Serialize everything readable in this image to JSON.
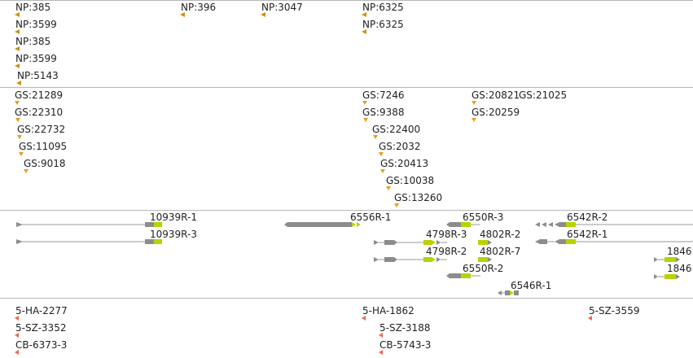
{
  "colors": {
    "np_marker": "#d09010",
    "gs_marker": "#e6a11c",
    "gene_line": "#999999",
    "gene_body": "#8c8c8c",
    "exon": "#b8d200",
    "marker_red": "#ee6a4a",
    "divider": "#b8b8b8"
  },
  "np_track": {
    "features": [
      "NP:385",
      "NP:3599",
      "NP:385",
      "NP:3599",
      "NP:5143",
      "NP:396",
      "NP:3047",
      "NP:6325",
      "NP:6325"
    ]
  },
  "gs_track": {
    "features": [
      "GS:21289",
      "GS:22310",
      "GS:22732",
      "GS:11095",
      "GS:9018",
      "GS:7246",
      "GS:9388",
      "GS:22400",
      "GS:2032",
      "GS:20413",
      "GS:10038",
      "GS:13260",
      "GS:20821",
      "GS:21025",
      "GS:20259"
    ]
  },
  "gene_track": {
    "features": [
      "10939R-1",
      "10939R-3",
      "6556R-1",
      "6550R-3",
      "6542R-2",
      "4798R-3",
      "4802R-2",
      "6542R-1",
      "4798R-2",
      "4802R-7",
      "6550R-2",
      "6546R-1",
      "1846",
      "1846"
    ]
  },
  "strain_track": {
    "features": [
      "5-HA-2277",
      "5-SZ-3352",
      "CB-6373-3",
      "5-HA-1862",
      "5-SZ-3188",
      "CB-5743-3",
      "5-SZ-3559"
    ]
  }
}
